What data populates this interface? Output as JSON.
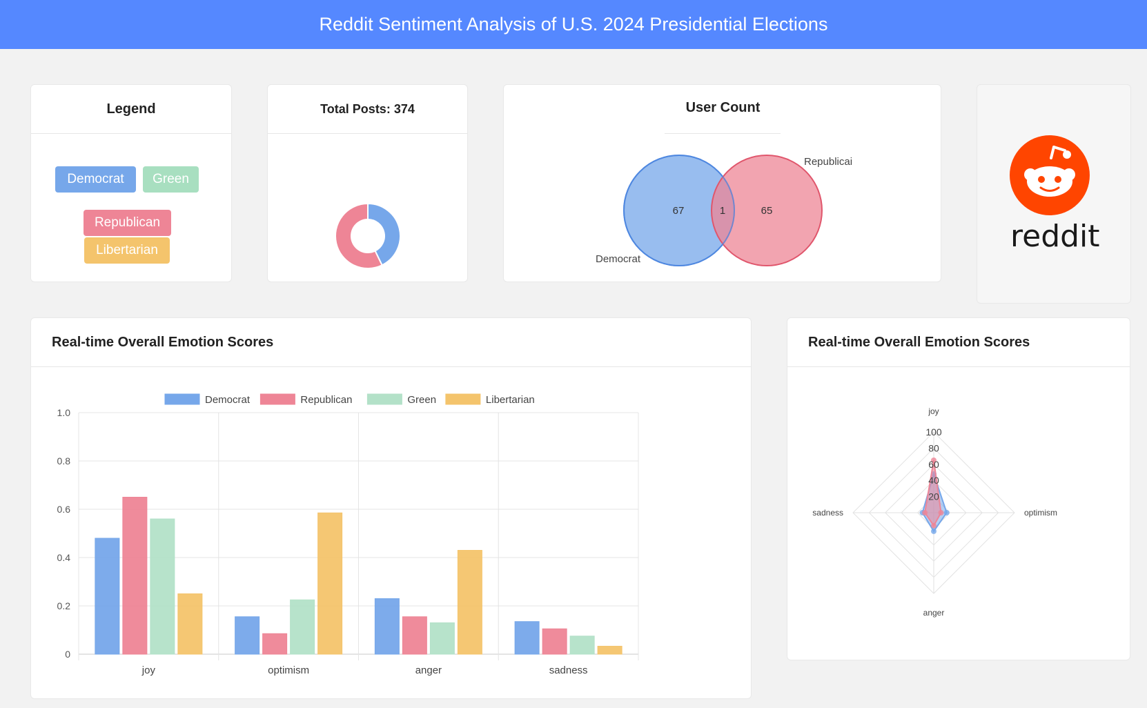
{
  "header": {
    "title": "Reddit Sentiment Analysis of U.S. 2024 Presidential Elections"
  },
  "legend_card": {
    "title": "Legend",
    "items": [
      {
        "label": "Democrat",
        "color": "#76a7ea"
      },
      {
        "label": "Green",
        "color": "#a8dfc0"
      },
      {
        "label": "Republican",
        "color": "#ee8596"
      },
      {
        "label": "Libertarian",
        "color": "#f4c46c"
      }
    ]
  },
  "posts_card": {
    "title": "Total Posts: 374",
    "chart_data": {
      "type": "pie",
      "categories": [
        "Democrat",
        "Republican"
      ],
      "values": [
        160,
        214
      ],
      "colors": [
        "#76a7ea",
        "#ee8596"
      ]
    }
  },
  "user_card": {
    "title": "User Count",
    "venn": {
      "sets": [
        {
          "name": "Democrat",
          "only": "67",
          "color": "#76a7ea"
        },
        {
          "name": "Republicai",
          "only": "65",
          "color": "#ee8596"
        }
      ],
      "overlap": "1"
    }
  },
  "reddit_card": {
    "logo_text": "reddit",
    "brand_color": "#ff4500"
  },
  "bar_card": {
    "title": "Real-time Overall Emotion Scores",
    "chart_data": {
      "type": "bar",
      "categories": [
        "joy",
        "optimism",
        "anger",
        "sadness"
      ],
      "series": [
        {
          "name": "Democrat",
          "color": "#76a7ea",
          "values": [
            0.48,
            0.155,
            0.23,
            0.135
          ]
        },
        {
          "name": "Republican",
          "color": "#ee8596",
          "values": [
            0.65,
            0.085,
            0.155,
            0.105
          ]
        },
        {
          "name": "Green",
          "color": "#b3e1c8",
          "values": [
            0.56,
            0.225,
            0.13,
            0.075
          ]
        },
        {
          "name": "Libertarian",
          "color": "#f4c46c",
          "values": [
            0.25,
            0.585,
            0.43,
            0.033
          ]
        }
      ],
      "ylim": [
        0,
        1.0
      ],
      "yticks": [
        "0",
        "0.2",
        "0.4",
        "0.6",
        "0.8",
        "1.0"
      ],
      "grid": true,
      "legend": "top"
    }
  },
  "radar_card": {
    "title": "Real-time Overall Emotion Scores",
    "chart_data": {
      "type": "radar",
      "axes": [
        "joy",
        "optimism",
        "anger",
        "sadness"
      ],
      "rticks": [
        "20",
        "40",
        "60",
        "80",
        "100"
      ],
      "rmax": 100,
      "series": [
        {
          "name": "Democrat",
          "color": "#76a7ea",
          "values": [
            48,
            16,
            23,
            14
          ]
        },
        {
          "name": "Republican",
          "color": "#ee8596",
          "values": [
            65,
            9,
            16,
            11
          ]
        }
      ]
    }
  }
}
